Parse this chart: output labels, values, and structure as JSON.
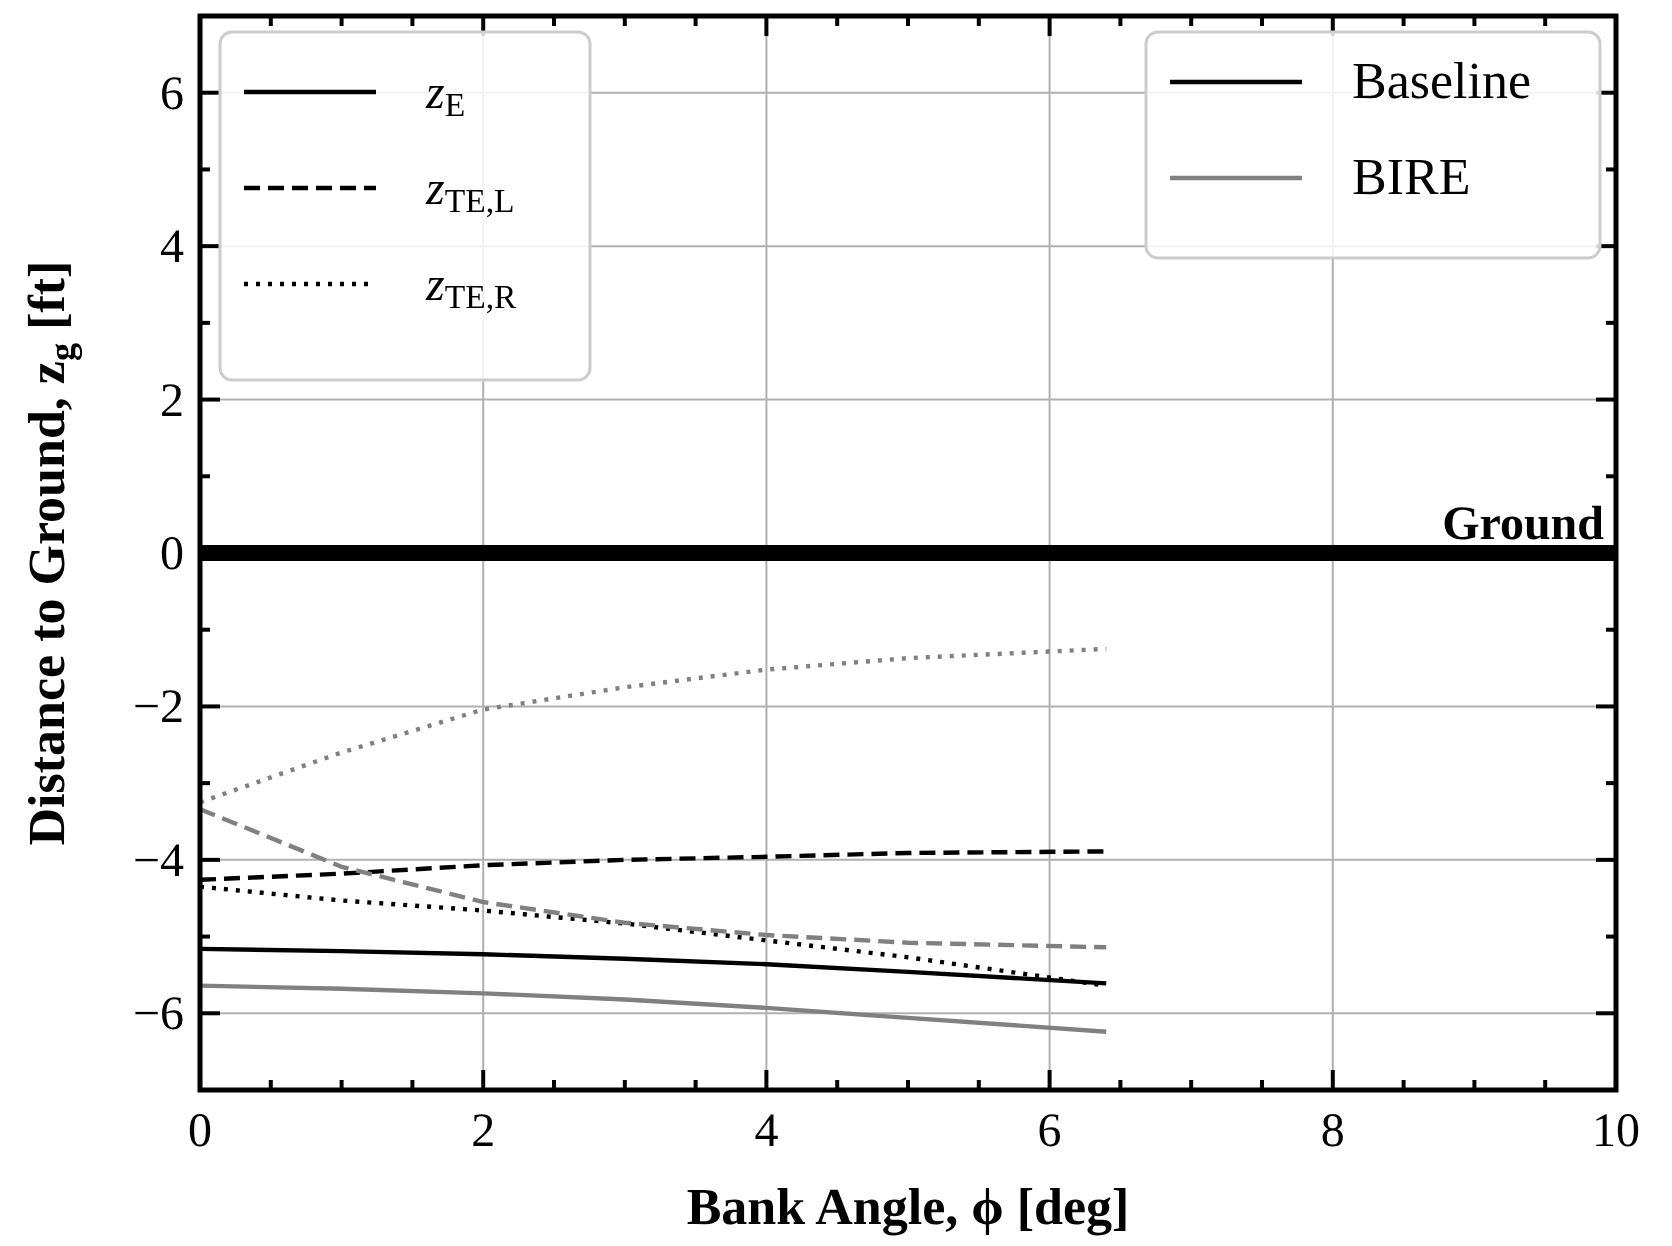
{
  "chart_data": {
    "type": "line",
    "xlabel": "Bank Angle, ϕ [deg]",
    "ylabel": "Distance to Ground, z$_{g}$ [ft]",
    "x": [
      0,
      1,
      2,
      3,
      4,
      5,
      6.4
    ],
    "series": [
      {
        "name": "z$_{E}$",
        "color": "#000000",
        "line_style": "solid",
        "values": [
          -5.16,
          -5.19,
          -5.23,
          -5.29,
          -5.36,
          -5.46,
          -5.61
        ]
      },
      {
        "name": "z$_{TE,L}$",
        "color": "#000000",
        "line_style": "dashed",
        "values": [
          -4.26,
          -4.18,
          -4.07,
          -4.0,
          -3.96,
          -3.91,
          -3.89
        ]
      },
      {
        "name": "z$_{TE,R}$",
        "color": "#000000",
        "line_style": "dotted",
        "values": [
          -4.35,
          -4.53,
          -4.66,
          -4.83,
          -5.05,
          -5.27,
          -5.64
        ]
      },
      {
        "name": "BIRE",
        "color": "#808080",
        "line_style": "solid",
        "values": [
          -5.64,
          -5.68,
          -5.74,
          -5.82,
          -5.93,
          -6.06,
          -6.24
        ]
      },
      {
        "color": "#808080",
        "line_style": "dashed",
        "values": [
          -3.34,
          -4.09,
          -4.55,
          -4.82,
          -4.98,
          -5.08,
          -5.14
        ]
      },
      {
        "color": "#808080",
        "line_style": "dotted",
        "values": [
          -3.25,
          -2.6,
          -2.04,
          -1.75,
          -1.52,
          -1.37,
          -1.25
        ]
      }
    ],
    "annotations": [
      "Baseline"
    ],
    "ref_lines": [
      {
        "axis": "y",
        "value": 0,
        "label": "Ground",
        "color": "#000000"
      }
    ],
    "xlim": [
      0,
      10
    ],
    "ylim": [
      -7,
      7
    ],
    "xticks": [
      0,
      {
        "value": 0.5,
        "label": null
      },
      {
        "value": 1,
        "label": null
      },
      {
        "value": 1.5,
        "label": null
      },
      2,
      {
        "value": 2.5,
        "label": null
      },
      {
        "value": 3,
        "label": null
      },
      {
        "value": 3.5,
        "label": null
      },
      4,
      {
        "value": 4.5,
        "label": null
      },
      {
        "value": 5,
        "label": null
      },
      {
        "value": 5.5,
        "label": null
      },
      6,
      {
        "value": 6.5,
        "label": null
      },
      {
        "value": 7,
        "label": null
      },
      {
        "value": 7.5,
        "label": null
      },
      8,
      {
        "value": 8.5,
        "label": null
      },
      {
        "value": 9,
        "label": null
      },
      {
        "value": 9.5,
        "label": null
      },
      10
    ],
    "yticks": [
      {
        "value": -6,
        "label": "−6"
      },
      {
        "value": -5,
        "label": null
      },
      {
        "value": -4,
        "label": "−4"
      },
      {
        "value": -3,
        "label": null
      },
      {
        "value": -2,
        "label": "−2"
      },
      {
        "value": -1,
        "label": null
      },
      0,
      {
        "value": 1,
        "label": null
      },
      2,
      {
        "value": 3,
        "label": null
      },
      4,
      {
        "value": 5,
        "label": null
      },
      6
    ],
    "grid": true,
    "legend": "top left"
  }
}
